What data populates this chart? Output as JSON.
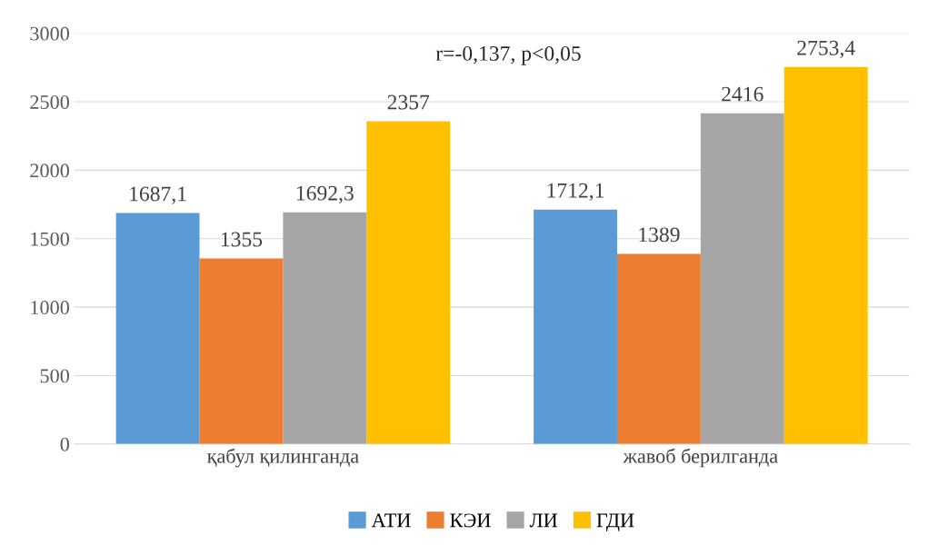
{
  "chart_data": {
    "type": "bar",
    "categories": [
      "қабул қилинганда",
      "жавоб берилганда"
    ],
    "series": [
      {
        "name": "АТИ",
        "color": "#5b9bd5",
        "values": [
          1687.1,
          1712.1
        ],
        "value_labels": [
          "1687,1",
          "1712,1"
        ]
      },
      {
        "name": "КЭИ",
        "color": "#ed7d31",
        "values": [
          1355,
          1389
        ],
        "value_labels": [
          "1355",
          "1389"
        ]
      },
      {
        "name": "ЛИ",
        "color": "#a5a5a5",
        "values": [
          1692.3,
          2416
        ],
        "value_labels": [
          "1692,3",
          "2416"
        ]
      },
      {
        "name": "ГДИ",
        "color": "#ffc000",
        "values": [
          2357,
          2753.4
        ],
        "value_labels": [
          "2357",
          "2753,4"
        ]
      }
    ],
    "ylim": [
      0,
      3000
    ],
    "yticks": [
      0,
      500,
      1000,
      1500,
      2000,
      2500,
      3000
    ],
    "grid": "y",
    "legend": "bottom",
    "annotations": [
      "r=-0,137, p<0,05"
    ]
  }
}
